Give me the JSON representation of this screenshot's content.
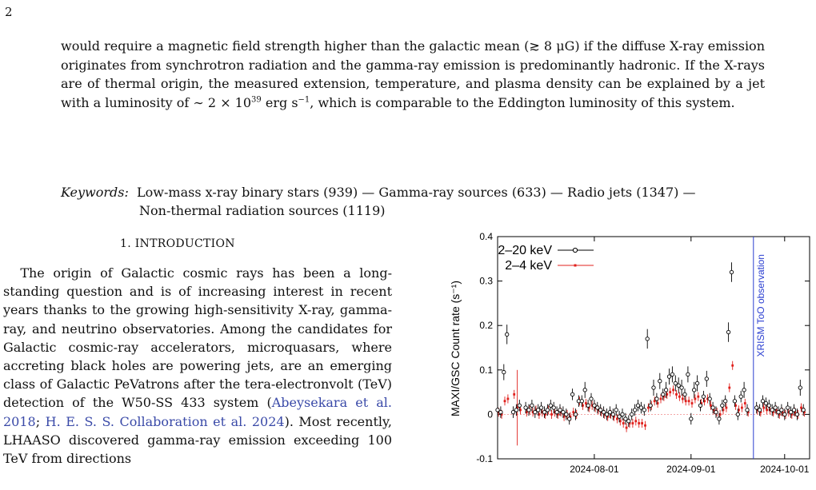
{
  "page_number": "2",
  "abstract": {
    "p1": "would require a magnetic field strength higher than the galactic mean (≳ 8 μG) if the diffuse X-ray emission originates from synchrotron radiation and the gamma-ray emission is predominantly hadronic. If the X-rays are of thermal origin, the measured extension, temperature, and plasma density can be explained by a jet with a luminosity of ∼ 2 × 10",
    "p1_sup": "39",
    "p1_mid": " erg s",
    "p1_sup2": "−1",
    "p1_end": ", which is comparable to the Eddington luminosity of this system."
  },
  "keywords": {
    "label": "Keywords:",
    "line1": "Low-mass x-ray binary stars (939) — Gamma-ray sources (633) — Radio jets (1347) —",
    "line2": "Non-thermal radiation sources (1119)"
  },
  "section": {
    "title": "1. INTRODUCTION"
  },
  "body": {
    "t1": "The origin of Galactic cosmic rays has been a long-standing question and is of increasing interest in recent years thanks to the growing high-sensitivity X-ray, gamma-ray, and neutrino observatories. Among the candidates for Galactic cosmic-ray accelerators, microquasars, where accreting black holes are powering jets, are an emerging class of Galactic PeVatrons after the tera-electronvolt (TeV) detection of the W50-SS 433 system (",
    "c1": "Abeysekara et al. 2018",
    "t2": "; ",
    "c2": "H. E. S. S. Collaboration et al. 2024",
    "t3": "). Most recently, LHAASO discovered gamma-ray emission exceeding 100 TeV from directions"
  },
  "chart_data": {
    "type": "scatter",
    "ylabel": "MAXI/GSC Count rate (s⁻¹)",
    "ylim": [
      -0.1,
      0.4
    ],
    "y_ticks": [
      "-0.1",
      "0",
      "0.1",
      "0.2",
      "0.3",
      "0.4"
    ],
    "x_ticks": [
      "2024-08-01",
      "2024-09-01",
      "2024-10-01"
    ],
    "x_tick_values": [
      31,
      62,
      92
    ],
    "xlim": [
      0,
      100
    ],
    "annotation": "XRISM ToO observation",
    "annotation_x": 82,
    "colors": {
      "hard": "#000000",
      "soft": "#e0201c",
      "annot": "#2b3fd1",
      "zero": "#f08a8a"
    },
    "series": [
      {
        "name": "2–20 keV",
        "points": [
          [
            0,
            0.01
          ],
          [
            1,
            0.005
          ],
          [
            2,
            0.095
          ],
          [
            3,
            0.18
          ],
          [
            5,
            0.005
          ],
          [
            6,
            0.01
          ],
          [
            7,
            0.02
          ],
          [
            9,
            0.015
          ],
          [
            10,
            0.01
          ],
          [
            11,
            0.02
          ],
          [
            12,
            0.005
          ],
          [
            13,
            0.01
          ],
          [
            14,
            0.015
          ],
          [
            15,
            0.005
          ],
          [
            16,
            0.01
          ],
          [
            17,
            0.02
          ],
          [
            18,
            0.015
          ],
          [
            19,
            0.005
          ],
          [
            20,
            0.01
          ],
          [
            21,
            0.005
          ],
          [
            22,
            0.0
          ],
          [
            23,
            -0.01
          ],
          [
            24,
            0.045
          ],
          [
            25,
            0.0
          ],
          [
            26,
            0.03
          ],
          [
            27,
            0.03
          ],
          [
            28,
            0.055
          ],
          [
            29,
            0.02
          ],
          [
            30,
            0.035
          ],
          [
            31,
            0.02
          ],
          [
            32,
            0.015
          ],
          [
            33,
            0.01
          ],
          [
            34,
            0.005
          ],
          [
            35,
            0.0
          ],
          [
            36,
            0.005
          ],
          [
            37,
            0.0
          ],
          [
            38,
            0.01
          ],
          [
            39,
            -0.005
          ],
          [
            40,
            0.0
          ],
          [
            41,
            -0.01
          ],
          [
            42,
            -0.015
          ],
          [
            43,
            0.0
          ],
          [
            44,
            0.01
          ],
          [
            45,
            0.02
          ],
          [
            46,
            0.015
          ],
          [
            47,
            0.01
          ],
          [
            48,
            0.17
          ],
          [
            49,
            0.02
          ],
          [
            50,
            0.06
          ],
          [
            51,
            0.035
          ],
          [
            52,
            0.075
          ],
          [
            53,
            0.045
          ],
          [
            54,
            0.055
          ],
          [
            55,
            0.085
          ],
          [
            56,
            0.09
          ],
          [
            57,
            0.07
          ],
          [
            58,
            0.065
          ],
          [
            59,
            0.06
          ],
          [
            60,
            0.045
          ],
          [
            61,
            0.09
          ],
          [
            62,
            -0.01
          ],
          [
            63,
            0.055
          ],
          [
            64,
            0.07
          ],
          [
            65,
            0.02
          ],
          [
            66,
            0.04
          ],
          [
            67,
            0.08
          ],
          [
            68,
            0.035
          ],
          [
            69,
            0.015
          ],
          [
            70,
            0.005
          ],
          [
            71,
            -0.01
          ],
          [
            72,
            0.02
          ],
          [
            73,
            0.03
          ],
          [
            74,
            0.185
          ],
          [
            75,
            0.32
          ],
          [
            76,
            0.03
          ],
          [
            77,
            0.0
          ],
          [
            78,
            0.04
          ],
          [
            79,
            0.055
          ],
          [
            80,
            0.01
          ],
          [
            83,
            0.015
          ],
          [
            84,
            0.01
          ],
          [
            85,
            0.03
          ],
          [
            86,
            0.025
          ],
          [
            87,
            0.02
          ],
          [
            88,
            0.01
          ],
          [
            89,
            0.015
          ],
          [
            90,
            0.005
          ],
          [
            91,
            0.01
          ],
          [
            92,
            0.0
          ],
          [
            93,
            0.015
          ],
          [
            94,
            0.005
          ],
          [
            95,
            0.01
          ],
          [
            96,
            0.0
          ],
          [
            97,
            0.06
          ],
          [
            98,
            0.01
          ]
        ]
      },
      {
        "name": "2–4 keV",
        "points": [
          [
            0,
            0.005
          ],
          [
            1,
            0.0
          ],
          [
            2,
            0.03
          ],
          [
            3,
            0.035
          ],
          [
            5,
            0.045
          ],
          [
            6,
            0.015
          ],
          [
            7,
            0.01
          ],
          [
            9,
            0.005
          ],
          [
            10,
            0.01
          ],
          [
            11,
            0.005
          ],
          [
            12,
            0.01
          ],
          [
            13,
            0.0
          ],
          [
            14,
            0.005
          ],
          [
            15,
            0.0
          ],
          [
            16,
            0.01
          ],
          [
            17,
            0.0
          ],
          [
            18,
            0.005
          ],
          [
            19,
            0.0
          ],
          [
            20,
            0.005
          ],
          [
            21,
            -0.005
          ],
          [
            22,
            0.0
          ],
          [
            23,
            -0.005
          ],
          [
            24,
            0.005
          ],
          [
            25,
            0.0
          ],
          [
            26,
            0.03
          ],
          [
            27,
            0.02
          ],
          [
            28,
            0.025
          ],
          [
            29,
            0.015
          ],
          [
            30,
            0.02
          ],
          [
            31,
            0.015
          ],
          [
            32,
            0.01
          ],
          [
            33,
            0.005
          ],
          [
            34,
            0.0
          ],
          [
            35,
            -0.005
          ],
          [
            36,
            0.0
          ],
          [
            37,
            -0.005
          ],
          [
            38,
            -0.01
          ],
          [
            39,
            -0.015
          ],
          [
            40,
            -0.02
          ],
          [
            41,
            -0.03
          ],
          [
            42,
            -0.02
          ],
          [
            43,
            -0.02
          ],
          [
            44,
            -0.015
          ],
          [
            45,
            -0.02
          ],
          [
            46,
            -0.02
          ],
          [
            47,
            -0.025
          ],
          [
            48,
            0.015
          ],
          [
            49,
            0.02
          ],
          [
            50,
            0.03
          ],
          [
            51,
            0.025
          ],
          [
            52,
            0.035
          ],
          [
            53,
            0.04
          ],
          [
            54,
            0.045
          ],
          [
            55,
            0.05
          ],
          [
            56,
            0.055
          ],
          [
            57,
            0.045
          ],
          [
            58,
            0.04
          ],
          [
            59,
            0.035
          ],
          [
            60,
            0.03
          ],
          [
            61,
            0.03
          ],
          [
            62,
            0.025
          ],
          [
            63,
            0.035
          ],
          [
            64,
            0.04
          ],
          [
            65,
            0.025
          ],
          [
            66,
            0.03
          ],
          [
            67,
            0.035
          ],
          [
            68,
            0.02
          ],
          [
            69,
            0.01
          ],
          [
            70,
            0.005
          ],
          [
            71,
            0.0
          ],
          [
            72,
            0.01
          ],
          [
            73,
            0.015
          ],
          [
            74,
            0.06
          ],
          [
            75,
            0.11
          ],
          [
            76,
            0.02
          ],
          [
            77,
            0.01
          ],
          [
            78,
            0.015
          ],
          [
            79,
            0.025
          ],
          [
            80,
            0.005
          ],
          [
            83,
            0.01
          ],
          [
            84,
            0.005
          ],
          [
            85,
            0.015
          ],
          [
            86,
            0.01
          ],
          [
            87,
            0.01
          ],
          [
            88,
            0.005
          ],
          [
            89,
            0.01
          ],
          [
            90,
            0.0
          ],
          [
            91,
            0.005
          ],
          [
            92,
            0.0
          ],
          [
            93,
            0.005
          ],
          [
            94,
            0.0
          ],
          [
            95,
            0.005
          ],
          [
            96,
            0.0
          ],
          [
            97,
            0.015
          ],
          [
            98,
            0.005
          ]
        ]
      }
    ]
  }
}
